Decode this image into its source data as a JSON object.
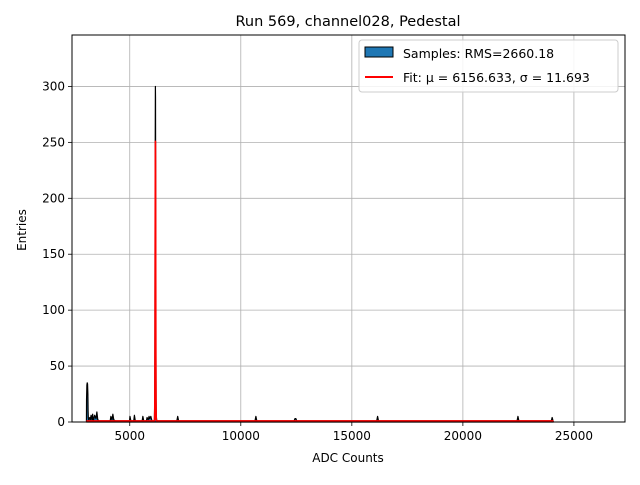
{
  "chart_data": {
    "type": "histogram",
    "title": "Run 569, channel028, Pedestal",
    "xlabel": "ADC Counts",
    "ylabel": "Entries",
    "xlim": [
      2400,
      27300
    ],
    "ylim": [
      0,
      346
    ],
    "grid": true,
    "legend_position": "top-right",
    "x_ticks": [
      5000,
      10000,
      15000,
      20000,
      25000
    ],
    "y_ticks": [
      0,
      50,
      100,
      150,
      200,
      250,
      300
    ],
    "legend": [
      {
        "label": "Samples: RMS=2660.18",
        "kind": "patch",
        "color": "#1f77b4"
      },
      {
        "label": "Fit: μ = 6156.633, σ = 11.693",
        "kind": "line",
        "color": "#ff0000"
      }
    ],
    "series": [
      {
        "name": "Samples: RMS=2660.18",
        "kind": "histogram",
        "color": "#1f77b4",
        "points": [
          [
            3050,
            0
          ],
          [
            3055,
            20
          ],
          [
            3070,
            33
          ],
          [
            3085,
            35
          ],
          [
            3100,
            34
          ],
          [
            3115,
            25
          ],
          [
            3125,
            10
          ],
          [
            3135,
            4
          ],
          [
            3150,
            2
          ],
          [
            3200,
            4
          ],
          [
            3225,
            2
          ],
          [
            3260,
            6
          ],
          [
            3300,
            2
          ],
          [
            3330,
            7
          ],
          [
            3360,
            1
          ],
          [
            3420,
            6
          ],
          [
            3480,
            3
          ],
          [
            3520,
            9
          ],
          [
            3560,
            2
          ],
          [
            3620,
            1
          ],
          [
            3700,
            1
          ],
          [
            3800,
            1
          ],
          [
            3900,
            1
          ],
          [
            4120,
            1
          ],
          [
            4150,
            5
          ],
          [
            4200,
            2
          ],
          [
            4240,
            7
          ],
          [
            4280,
            2
          ],
          [
            4350,
            1
          ],
          [
            4600,
            1
          ],
          [
            4800,
            1
          ],
          [
            4990,
            1
          ],
          [
            5010,
            5
          ],
          [
            5050,
            1
          ],
          [
            5180,
            1
          ],
          [
            5210,
            6
          ],
          [
            5250,
            1
          ],
          [
            5400,
            1
          ],
          [
            5560,
            1
          ],
          [
            5590,
            5
          ],
          [
            5630,
            1
          ],
          [
            5750,
            1
          ],
          [
            5780,
            4
          ],
          [
            5830,
            2
          ],
          [
            5870,
            5
          ],
          [
            5900,
            3
          ],
          [
            5950,
            5
          ],
          [
            6000,
            1
          ],
          [
            6110,
            1
          ],
          [
            6125,
            20
          ],
          [
            6135,
            80
          ],
          [
            6140,
            150
          ],
          [
            6145,
            230
          ],
          [
            6150,
            265
          ],
          [
            6155,
            300
          ],
          [
            6160,
            290
          ],
          [
            6165,
            230
          ],
          [
            6170,
            140
          ],
          [
            6178,
            60
          ],
          [
            6185,
            20
          ],
          [
            6195,
            6
          ],
          [
            6210,
            2
          ],
          [
            6230,
            1
          ],
          [
            6400,
            1
          ],
          [
            6800,
            1
          ],
          [
            7120,
            1
          ],
          [
            7160,
            5
          ],
          [
            7200,
            1
          ],
          [
            8500,
            1
          ],
          [
            10640,
            1
          ],
          [
            10680,
            5
          ],
          [
            10720,
            1
          ],
          [
            12400,
            1
          ],
          [
            12440,
            3
          ],
          [
            12480,
            3
          ],
          [
            12520,
            1
          ],
          [
            14000,
            1
          ],
          [
            16120,
            1
          ],
          [
            16160,
            5
          ],
          [
            16200,
            1
          ],
          [
            19000,
            1
          ],
          [
            22440,
            1
          ],
          [
            22480,
            5
          ],
          [
            22520,
            1
          ],
          [
            23980,
            1
          ],
          [
            24020,
            4
          ],
          [
            24060,
            1
          ],
          [
            24080,
            0
          ]
        ]
      },
      {
        "name": "Fit: μ = 6156.633, σ = 11.693",
        "kind": "gaussian",
        "color": "#ff0000",
        "mu": 6156.633,
        "sigma": 11.693,
        "amplitude": 250,
        "baseline": 1,
        "x_range": [
          3050,
          24080
        ]
      }
    ]
  }
}
